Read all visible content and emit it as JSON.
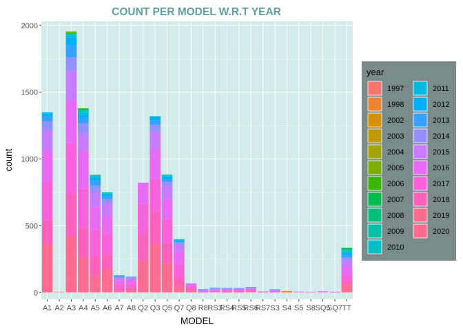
{
  "chart_data": {
    "type": "bar",
    "stacked": true,
    "title": "COUNT PER  MODEL W.R.T YEAR",
    "xlabel": "MODEL",
    "ylabel": "count",
    "ylim": [
      -50,
      2030
    ],
    "yticks": [
      0,
      500,
      1000,
      1500,
      2000
    ],
    "grid": true,
    "panel_background": "#d2ecec",
    "legend": {
      "title": "year",
      "placement": "right",
      "background": "#7a8b8b",
      "columns": 2
    },
    "categories": [
      "A1",
      "A2",
      "A3",
      "A4",
      "A5",
      "A6",
      "A7",
      "A8",
      "Q2",
      "Q3",
      "Q5",
      "Q7",
      "Q8",
      "R8",
      "RS3",
      "RS4",
      "RS5",
      "RS6",
      "RS7",
      "S3",
      "S4",
      "S5",
      "S8",
      "SQ5",
      "SQ7",
      "TT"
    ],
    "years": [
      "1997",
      "1998",
      "2002",
      "2003",
      "2004",
      "2005",
      "2006",
      "2007",
      "2008",
      "2009",
      "2010",
      "2011",
      "2012",
      "2013",
      "2014",
      "2015",
      "2016",
      "2017",
      "2018",
      "2019",
      "2020"
    ],
    "colors": [
      "#f8766d",
      "#ea8331",
      "#d89000",
      "#c09b00",
      "#a3a500",
      "#7cae00",
      "#39b600",
      "#00bb4e",
      "#00bf7d",
      "#00c1a3",
      "#00bfc4",
      "#00bae0",
      "#00b0f6",
      "#35a2ff",
      "#9590ff",
      "#c77cff",
      "#e76bf3",
      "#fa62db",
      "#ff62bc",
      "#ff6c91",
      "#ff6c91"
    ],
    "series": [
      {
        "name": "1997",
        "values": [
          0,
          0,
          0,
          0,
          0,
          0,
          0,
          0,
          0,
          0,
          0,
          0,
          0,
          0,
          0,
          0,
          0,
          0,
          0,
          0,
          2,
          0,
          0,
          0,
          0,
          0
        ]
      },
      {
        "name": "1998",
        "values": [
          0,
          0,
          0,
          0,
          0,
          0,
          0,
          0,
          0,
          0,
          0,
          0,
          0,
          0,
          0,
          0,
          0,
          0,
          0,
          0,
          10,
          0,
          0,
          0,
          0,
          0
        ]
      },
      {
        "name": "2002",
        "values": [
          0,
          0,
          0,
          0,
          0,
          0,
          0,
          0,
          0,
          0,
          0,
          0,
          0,
          0,
          0,
          0,
          0,
          0,
          0,
          0,
          0,
          0,
          0,
          0,
          0,
          0
        ]
      },
      {
        "name": "2003",
        "values": [
          0,
          0,
          3,
          0,
          0,
          0,
          0,
          0,
          0,
          0,
          0,
          0,
          0,
          0,
          0,
          0,
          0,
          0,
          0,
          0,
          0,
          0,
          0,
          0,
          0,
          0
        ]
      },
      {
        "name": "2004",
        "values": [
          0,
          0,
          2,
          0,
          0,
          0,
          0,
          0,
          0,
          0,
          0,
          0,
          0,
          0,
          0,
          0,
          0,
          0,
          0,
          0,
          0,
          0,
          0,
          0,
          0,
          0
        ]
      },
      {
        "name": "2005",
        "values": [
          0,
          0,
          3,
          0,
          0,
          0,
          0,
          0,
          0,
          0,
          0,
          0,
          0,
          0,
          0,
          0,
          0,
          0,
          0,
          0,
          0,
          0,
          0,
          0,
          0,
          0
        ]
      },
      {
        "name": "2006",
        "values": [
          0,
          0,
          5,
          2,
          0,
          0,
          0,
          0,
          0,
          0,
          0,
          0,
          0,
          0,
          0,
          0,
          0,
          0,
          0,
          0,
          0,
          0,
          0,
          0,
          0,
          3
        ]
      },
      {
        "name": "2007",
        "values": [
          0,
          0,
          5,
          8,
          2,
          0,
          0,
          0,
          0,
          0,
          0,
          0,
          0,
          0,
          0,
          0,
          0,
          0,
          0,
          0,
          0,
          0,
          0,
          0,
          0,
          6
        ]
      },
      {
        "name": "2008",
        "values": [
          0,
          0,
          4,
          6,
          3,
          0,
          0,
          0,
          0,
          0,
          2,
          0,
          0,
          0,
          0,
          0,
          0,
          0,
          0,
          0,
          0,
          0,
          0,
          0,
          0,
          6
        ]
      },
      {
        "name": "2009",
        "values": [
          0,
          0,
          4,
          8,
          3,
          0,
          0,
          0,
          0,
          0,
          3,
          0,
          0,
          0,
          0,
          0,
          0,
          0,
          0,
          0,
          0,
          0,
          0,
          0,
          0,
          5
        ]
      },
      {
        "name": "2010",
        "values": [
          2,
          0,
          8,
          10,
          5,
          10,
          0,
          0,
          0,
          2,
          5,
          5,
          0,
          0,
          0,
          0,
          0,
          0,
          0,
          0,
          0,
          0,
          0,
          0,
          0,
          8
        ]
      },
      {
        "name": "2011",
        "values": [
          8,
          0,
          12,
          15,
          8,
          6,
          0,
          0,
          0,
          3,
          8,
          5,
          0,
          0,
          0,
          0,
          0,
          0,
          0,
          0,
          0,
          0,
          0,
          0,
          0,
          10
        ]
      },
      {
        "name": "2012",
        "values": [
          20,
          0,
          60,
          20,
          20,
          15,
          3,
          0,
          0,
          25,
          15,
          5,
          0,
          0,
          0,
          0,
          0,
          0,
          0,
          0,
          0,
          0,
          0,
          0,
          0,
          12
        ]
      },
      {
        "name": "2013",
        "values": [
          40,
          0,
          90,
          45,
          40,
          20,
          7,
          5,
          0,
          35,
          20,
          10,
          0,
          3,
          5,
          3,
          2,
          5,
          0,
          3,
          0,
          0,
          0,
          0,
          0,
          20
        ]
      },
      {
        "name": "2014",
        "values": [
          65,
          0,
          100,
          75,
          50,
          30,
          12,
          7,
          0,
          50,
          30,
          15,
          0,
          5,
          5,
          5,
          5,
          5,
          0,
          5,
          0,
          0,
          0,
          0,
          0,
          25
        ]
      },
      {
        "name": "2015",
        "values": [
          150,
          0,
          220,
          130,
          110,
          100,
          15,
          15,
          0,
          140,
          100,
          50,
          5,
          5,
          5,
          5,
          5,
          5,
          2,
          5,
          0,
          2,
          0,
          3,
          2,
          50
        ]
      },
      {
        "name": "2016",
        "values": [
          230,
          0,
          320,
          280,
          170,
          125,
          30,
          25,
          160,
          210,
          150,
          100,
          15,
          7,
          7,
          7,
          7,
          5,
          2,
          5,
          0,
          3,
          3,
          5,
          3,
          60
        ]
      },
      {
        "name": "2017",
        "values": [
          290,
          0,
          380,
          290,
          200,
          160,
          30,
          30,
          225,
          245,
          180,
          100,
          20,
          5,
          8,
          8,
          8,
          7,
          3,
          5,
          0,
          3,
          2,
          3,
          2,
          40
        ]
      },
      {
        "name": "2018",
        "values": [
          180,
          0,
          320,
          230,
          140,
          110,
          20,
          20,
          200,
          250,
          150,
          60,
          15,
          2,
          3,
          5,
          5,
          5,
          2,
          2,
          0,
          0,
          0,
          0,
          0,
          35
        ]
      },
      {
        "name": "2019",
        "values": [
          290,
          0,
          330,
          220,
          80,
          130,
          10,
          15,
          210,
          260,
          180,
          40,
          15,
          0,
          3,
          2,
          2,
          2,
          0,
          0,
          0,
          0,
          0,
          0,
          0,
          45
        ]
      },
      {
        "name": "2020",
        "values": [
          75,
          5,
          90,
          40,
          50,
          45,
          3,
          2,
          28,
          100,
          40,
          10,
          0,
          0,
          0,
          0,
          0,
          8,
          0,
          0,
          0,
          0,
          0,
          0,
          0,
          10
        ]
      }
    ]
  }
}
